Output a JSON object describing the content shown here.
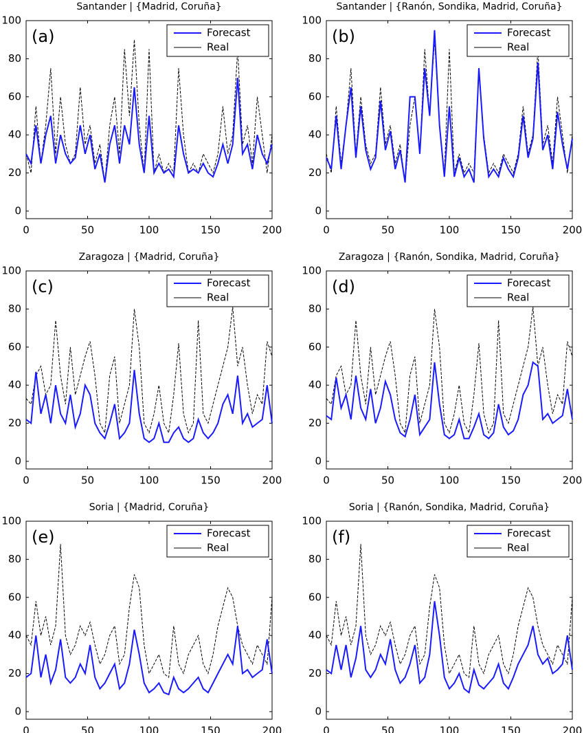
{
  "chart_data": [
    {
      "type": "line",
      "title": "Santander | {Madrid, Coruña}",
      "panel_label": "(a)",
      "legend": "upper right",
      "x": [
        0,
        4,
        8,
        12,
        16,
        20,
        24,
        28,
        32,
        36,
        40,
        44,
        48,
        52,
        56,
        60,
        64,
        68,
        72,
        76,
        80,
        84,
        88,
        92,
        96,
        100,
        104,
        108,
        112,
        116,
        120,
        124,
        128,
        132,
        136,
        140,
        144,
        148,
        152,
        156,
        160,
        164,
        168,
        172,
        176,
        180,
        184,
        188,
        192,
        196,
        200
      ],
      "xlim": [
        0,
        200
      ],
      "ylim": [
        -4,
        100
      ],
      "xticks": [
        0,
        50,
        100,
        150,
        200
      ],
      "yticks": [
        0,
        20,
        40,
        60,
        80,
        100
      ],
      "series": [
        {
          "name": "Forecast",
          "color": "#1a1aff",
          "linestyle": "solid",
          "values": [
            30,
            25,
            45,
            25,
            40,
            50,
            25,
            40,
            30,
            25,
            28,
            45,
            30,
            40,
            22,
            30,
            15,
            35,
            45,
            25,
            45,
            35,
            65,
            35,
            20,
            50,
            20,
            25,
            20,
            22,
            18,
            45,
            30,
            20,
            22,
            20,
            25,
            20,
            18,
            25,
            35,
            25,
            35,
            70,
            30,
            35,
            22,
            40,
            30,
            25,
            35
          ]
        },
        {
          "name": "Real",
          "color": "#000000",
          "linestyle": "dashed",
          "values": [
            30,
            20,
            55,
            25,
            45,
            75,
            30,
            60,
            35,
            25,
            30,
            65,
            35,
            45,
            25,
            35,
            15,
            45,
            60,
            30,
            85,
            50,
            90,
            45,
            20,
            85,
            20,
            30,
            20,
            25,
            20,
            75,
            40,
            20,
            25,
            20,
            30,
            25,
            20,
            30,
            55,
            30,
            40,
            85,
            35,
            45,
            25,
            60,
            40,
            20,
            40
          ]
        }
      ]
    },
    {
      "type": "line",
      "title": "Santander | {Ranón, Sondika, Madrid, Coruña}",
      "panel_label": "(b)",
      "legend": "upper right",
      "x": [
        0,
        4,
        8,
        12,
        16,
        20,
        24,
        28,
        32,
        36,
        40,
        44,
        48,
        52,
        56,
        60,
        64,
        68,
        72,
        76,
        80,
        84,
        88,
        92,
        96,
        100,
        104,
        108,
        112,
        116,
        120,
        124,
        128,
        132,
        136,
        140,
        144,
        148,
        152,
        156,
        160,
        164,
        168,
        172,
        176,
        180,
        184,
        188,
        192,
        196,
        200
      ],
      "xlim": [
        0,
        200
      ],
      "ylim": [
        -4,
        100
      ],
      "xticks": [
        0,
        50,
        100,
        150,
        200
      ],
      "yticks": [
        0,
        20,
        40,
        60,
        80,
        100
      ],
      "series": [
        {
          "name": "Forecast",
          "color": "#1a1aff",
          "linestyle": "solid",
          "values": [
            28,
            22,
            50,
            22,
            45,
            65,
            28,
            55,
            32,
            22,
            28,
            58,
            32,
            42,
            22,
            32,
            15,
            60,
            60,
            30,
            75,
            50,
            95,
            45,
            18,
            55,
            18,
            28,
            18,
            22,
            15,
            75,
            38,
            18,
            22,
            18,
            28,
            22,
            18,
            28,
            50,
            28,
            38,
            78,
            32,
            40,
            22,
            52,
            35,
            22,
            38
          ]
        },
        {
          "name": "Real",
          "color": "#000000",
          "linestyle": "dashed",
          "values": [
            30,
            20,
            55,
            25,
            45,
            75,
            30,
            60,
            35,
            25,
            30,
            65,
            35,
            45,
            25,
            35,
            15,
            45,
            60,
            30,
            85,
            50,
            90,
            45,
            20,
            85,
            20,
            30,
            20,
            25,
            20,
            75,
            40,
            20,
            25,
            20,
            30,
            25,
            20,
            30,
            55,
            30,
            40,
            85,
            35,
            45,
            25,
            60,
            40,
            20,
            40
          ]
        }
      ]
    },
    {
      "type": "line",
      "title": "Zaragoza | {Madrid, Coruña}",
      "panel_label": "(c)",
      "legend": "upper right",
      "x": [
        0,
        4,
        8,
        12,
        16,
        20,
        24,
        28,
        32,
        36,
        40,
        44,
        48,
        52,
        56,
        60,
        64,
        68,
        72,
        76,
        80,
        84,
        88,
        92,
        96,
        100,
        104,
        108,
        112,
        116,
        120,
        124,
        128,
        132,
        136,
        140,
        144,
        148,
        152,
        156,
        160,
        164,
        168,
        172,
        176,
        180,
        184,
        188,
        192,
        196,
        200
      ],
      "xlim": [
        0,
        200
      ],
      "ylim": [
        -4,
        100
      ],
      "xticks": [
        0,
        50,
        100,
        150,
        200
      ],
      "yticks": [
        0,
        20,
        40,
        60,
        80,
        100
      ],
      "series": [
        {
          "name": "Forecast",
          "color": "#1a1aff",
          "linestyle": "solid",
          "values": [
            22,
            20,
            47,
            25,
            35,
            20,
            40,
            25,
            20,
            35,
            18,
            25,
            40,
            35,
            20,
            15,
            12,
            20,
            30,
            12,
            15,
            20,
            48,
            25,
            12,
            10,
            12,
            20,
            10,
            10,
            15,
            18,
            12,
            10,
            12,
            22,
            15,
            12,
            15,
            20,
            30,
            35,
            25,
            45,
            20,
            25,
            18,
            20,
            22,
            40,
            20
          ]
        },
        {
          "name": "Real",
          "color": "#000000",
          "linestyle": "dashed",
          "values": [
            33,
            30,
            45,
            50,
            35,
            40,
            74,
            45,
            30,
            60,
            35,
            45,
            55,
            63,
            45,
            20,
            15,
            45,
            55,
            20,
            30,
            40,
            80,
            60,
            20,
            15,
            25,
            40,
            20,
            15,
            35,
            62,
            25,
            15,
            20,
            74,
            25,
            20,
            30,
            40,
            50,
            60,
            81,
            50,
            60,
            40,
            25,
            35,
            30,
            63,
            55
          ]
        }
      ]
    },
    {
      "type": "line",
      "title": "Zaragoza | {Ranón, Sondika, Madrid, Coruña}",
      "panel_label": "(d)",
      "legend": "upper right",
      "x": [
        0,
        4,
        8,
        12,
        16,
        20,
        24,
        28,
        32,
        36,
        40,
        44,
        48,
        52,
        56,
        60,
        64,
        68,
        72,
        76,
        80,
        84,
        88,
        92,
        96,
        100,
        104,
        108,
        112,
        116,
        120,
        124,
        128,
        132,
        136,
        140,
        144,
        148,
        152,
        156,
        160,
        164,
        168,
        172,
        176,
        180,
        184,
        188,
        192,
        196,
        200
      ],
      "xlim": [
        0,
        200
      ],
      "ylim": [
        -4,
        100
      ],
      "xticks": [
        0,
        50,
        100,
        150,
        200
      ],
      "yticks": [
        0,
        20,
        40,
        60,
        80,
        100
      ],
      "series": [
        {
          "name": "Forecast",
          "color": "#1a1aff",
          "linestyle": "solid",
          "values": [
            24,
            22,
            44,
            28,
            35,
            22,
            45,
            28,
            22,
            38,
            20,
            28,
            42,
            35,
            22,
            15,
            13,
            22,
            35,
            14,
            18,
            22,
            52,
            30,
            14,
            12,
            14,
            22,
            12,
            12,
            18,
            25,
            14,
            12,
            15,
            30,
            18,
            14,
            16,
            22,
            35,
            40,
            52,
            50,
            22,
            25,
            20,
            22,
            24,
            38,
            22
          ]
        },
        {
          "name": "Real",
          "color": "#000000",
          "linestyle": "dashed",
          "values": [
            33,
            30,
            45,
            50,
            35,
            40,
            74,
            45,
            30,
            60,
            35,
            45,
            55,
            63,
            45,
            20,
            15,
            45,
            55,
            20,
            30,
            40,
            80,
            60,
            20,
            15,
            25,
            40,
            20,
            15,
            35,
            62,
            25,
            15,
            20,
            74,
            25,
            20,
            30,
            40,
            50,
            60,
            81,
            50,
            60,
            40,
            25,
            35,
            30,
            63,
            55
          ]
        }
      ]
    },
    {
      "type": "line",
      "title": "Soria | {Madrid, Coruña}",
      "panel_label": "(e)",
      "legend": "upper right",
      "x": [
        0,
        4,
        8,
        12,
        16,
        20,
        24,
        28,
        32,
        36,
        40,
        44,
        48,
        52,
        56,
        60,
        64,
        68,
        72,
        76,
        80,
        84,
        88,
        92,
        96,
        100,
        104,
        108,
        112,
        116,
        120,
        124,
        128,
        132,
        136,
        140,
        144,
        148,
        152,
        156,
        160,
        164,
        168,
        172,
        176,
        180,
        184,
        188,
        192,
        196,
        200
      ],
      "xlim": [
        0,
        200
      ],
      "ylim": [
        -4,
        100
      ],
      "xticks": [
        0,
        50,
        100,
        150,
        200
      ],
      "yticks": [
        0,
        20,
        40,
        60,
        80,
        100
      ],
      "series": [
        {
          "name": "Forecast",
          "color": "#1a1aff",
          "linestyle": "solid",
          "values": [
            18,
            20,
            40,
            18,
            30,
            15,
            22,
            38,
            18,
            15,
            18,
            25,
            20,
            35,
            18,
            12,
            15,
            20,
            25,
            12,
            15,
            25,
            43,
            30,
            15,
            10,
            12,
            15,
            10,
            9,
            18,
            12,
            10,
            12,
            15,
            18,
            12,
            10,
            15,
            20,
            25,
            30,
            25,
            45,
            20,
            22,
            18,
            20,
            22,
            38,
            20
          ]
        },
        {
          "name": "Real",
          "color": "#000000",
          "linestyle": "dashed",
          "values": [
            40,
            35,
            58,
            40,
            50,
            35,
            45,
            88,
            40,
            30,
            35,
            45,
            40,
            47,
            35,
            25,
            30,
            40,
            45,
            25,
            30,
            55,
            72,
            65,
            35,
            20,
            25,
            30,
            20,
            18,
            45,
            25,
            20,
            30,
            35,
            40,
            25,
            20,
            30,
            45,
            55,
            65,
            60,
            45,
            35,
            30,
            25,
            35,
            30,
            25,
            60
          ]
        }
      ]
    },
    {
      "type": "line",
      "title": "Soria | {Ranón, Sondika, Madrid, Coruña}",
      "panel_label": "(f)",
      "legend": "upper right",
      "x": [
        0,
        4,
        8,
        12,
        16,
        20,
        24,
        28,
        32,
        36,
        40,
        44,
        48,
        52,
        56,
        60,
        64,
        68,
        72,
        76,
        80,
        84,
        88,
        92,
        96,
        100,
        104,
        108,
        112,
        116,
        120,
        124,
        128,
        132,
        136,
        140,
        144,
        148,
        152,
        156,
        160,
        164,
        168,
        172,
        176,
        180,
        184,
        188,
        192,
        196,
        200
      ],
      "xlim": [
        0,
        200
      ],
      "ylim": [
        -4,
        100
      ],
      "xticks": [
        0,
        50,
        100,
        150,
        200
      ],
      "yticks": [
        0,
        20,
        40,
        60,
        80,
        100
      ],
      "series": [
        {
          "name": "Forecast",
          "color": "#1a1aff",
          "linestyle": "solid",
          "values": [
            22,
            20,
            35,
            22,
            35,
            18,
            28,
            45,
            22,
            18,
            22,
            30,
            25,
            38,
            22,
            15,
            18,
            25,
            35,
            15,
            18,
            30,
            58,
            40,
            18,
            12,
            15,
            20,
            12,
            10,
            22,
            14,
            12,
            15,
            18,
            25,
            15,
            12,
            18,
            25,
            30,
            35,
            45,
            30,
            25,
            28,
            20,
            22,
            25,
            40,
            22
          ]
        },
        {
          "name": "Real",
          "color": "#000000",
          "linestyle": "dashed",
          "values": [
            40,
            35,
            58,
            40,
            50,
            35,
            45,
            88,
            40,
            30,
            35,
            45,
            40,
            47,
            35,
            25,
            30,
            40,
            45,
            25,
            30,
            55,
            72,
            65,
            35,
            20,
            25,
            30,
            20,
            18,
            45,
            25,
            20,
            30,
            35,
            40,
            25,
            20,
            30,
            45,
            55,
            65,
            60,
            45,
            35,
            30,
            25,
            35,
            30,
            25,
            60
          ]
        }
      ]
    }
  ]
}
